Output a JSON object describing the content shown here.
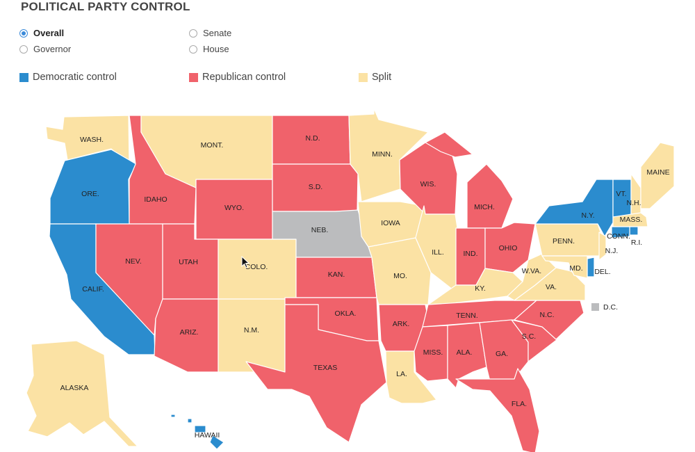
{
  "title": "POLITICAL PARTY CONTROL",
  "filters": [
    {
      "id": "overall",
      "label": "Overall",
      "selected": true
    },
    {
      "id": "governor",
      "label": "Governor",
      "selected": false
    },
    {
      "id": "senate",
      "label": "Senate",
      "selected": false
    },
    {
      "id": "house",
      "label": "House",
      "selected": false
    }
  ],
  "legend": [
    {
      "key": "dem",
      "label": "Democratic control",
      "color": "#2b8cce"
    },
    {
      "key": "rep",
      "label": "Republican control",
      "color": "#f0626b"
    },
    {
      "key": "split",
      "label": "Split",
      "color": "#fbe2a4"
    }
  ],
  "dc": {
    "label": "D.C.",
    "color": "#bbbcbe"
  },
  "nebraska_color": "#bbbcbe",
  "states": [
    {
      "abbr": "WASH.",
      "control": "split"
    },
    {
      "abbr": "ORE.",
      "control": "dem"
    },
    {
      "abbr": "CALIF.",
      "control": "dem"
    },
    {
      "abbr": "IDAHO",
      "control": "rep"
    },
    {
      "abbr": "NEV.",
      "control": "rep"
    },
    {
      "abbr": "MONT.",
      "control": "split"
    },
    {
      "abbr": "WYO.",
      "control": "rep"
    },
    {
      "abbr": "UTAH",
      "control": "rep"
    },
    {
      "abbr": "ARIZ.",
      "control": "rep"
    },
    {
      "abbr": "COLO.",
      "control": "split"
    },
    {
      "abbr": "N.M.",
      "control": "split"
    },
    {
      "abbr": "N.D.",
      "control": "rep"
    },
    {
      "abbr": "S.D.",
      "control": "rep"
    },
    {
      "abbr": "NEB.",
      "control": "nonpartisan"
    },
    {
      "abbr": "KAN.",
      "control": "rep"
    },
    {
      "abbr": "OKLA.",
      "control": "rep"
    },
    {
      "abbr": "TEXAS",
      "control": "rep"
    },
    {
      "abbr": "MINN.",
      "control": "split"
    },
    {
      "abbr": "IOWA",
      "control": "split"
    },
    {
      "abbr": "MO.",
      "control": "split"
    },
    {
      "abbr": "ARK.",
      "control": "rep"
    },
    {
      "abbr": "LA.",
      "control": "split"
    },
    {
      "abbr": "WIS.",
      "control": "rep"
    },
    {
      "abbr": "ILL.",
      "control": "split"
    },
    {
      "abbr": "MICH.",
      "control": "rep"
    },
    {
      "abbr": "IND.",
      "control": "rep"
    },
    {
      "abbr": "OHIO",
      "control": "rep"
    },
    {
      "abbr": "KY.",
      "control": "split"
    },
    {
      "abbr": "TENN.",
      "control": "rep"
    },
    {
      "abbr": "MISS.",
      "control": "rep"
    },
    {
      "abbr": "ALA.",
      "control": "rep"
    },
    {
      "abbr": "GA.",
      "control": "rep"
    },
    {
      "abbr": "FLA.",
      "control": "rep"
    },
    {
      "abbr": "S.C.",
      "control": "rep"
    },
    {
      "abbr": "N.C.",
      "control": "rep"
    },
    {
      "abbr": "VA.",
      "control": "split"
    },
    {
      "abbr": "W.VA.",
      "control": "split"
    },
    {
      "abbr": "PENN.",
      "control": "split"
    },
    {
      "abbr": "N.Y.",
      "control": "dem"
    },
    {
      "abbr": "VT.",
      "control": "dem"
    },
    {
      "abbr": "N.H.",
      "control": "split"
    },
    {
      "abbr": "MAINE",
      "control": "split"
    },
    {
      "abbr": "MASS.",
      "control": "split"
    },
    {
      "abbr": "R.I.",
      "control": "dem"
    },
    {
      "abbr": "CONN.",
      "control": "dem"
    },
    {
      "abbr": "N.J.",
      "control": "split"
    },
    {
      "abbr": "DEL.",
      "control": "dem"
    },
    {
      "abbr": "MD.",
      "control": "split"
    },
    {
      "abbr": "ALASKA",
      "control": "split"
    },
    {
      "abbr": "HAWAII",
      "control": "dem"
    }
  ]
}
